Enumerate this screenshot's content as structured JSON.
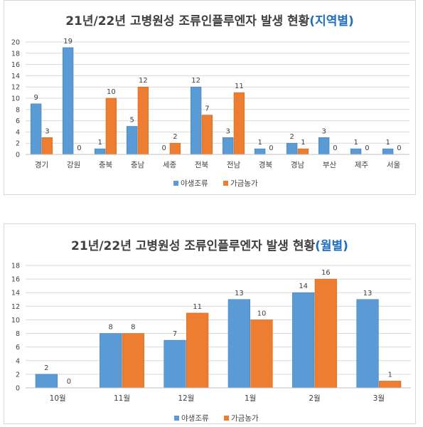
{
  "colors": {
    "series1": "#5b9bd5",
    "series1_dark": "#3d7fc0",
    "series2": "#ed7d31",
    "series2_dark": "#d4661d",
    "grid": "#d9d9d9",
    "text": "#404040",
    "title_accent": "#1f6fbf"
  },
  "chart_data": [
    {
      "type": "bar",
      "title": "21년/22년 고병원성 조류인플루엔자 발생 현황",
      "title_suffix": "(지역별)",
      "categories": [
        "경기",
        "강원",
        "충북",
        "충남",
        "세종",
        "전북",
        "전남",
        "경북",
        "경남",
        "부산",
        "제주",
        "서울"
      ],
      "series": [
        {
          "name": "야생조류",
          "values": [
            9,
            19,
            1,
            5,
            0,
            12,
            3,
            1,
            2,
            3,
            1,
            1
          ]
        },
        {
          "name": "가금농가",
          "values": [
            3,
            0,
            10,
            12,
            2,
            7,
            11,
            0,
            1,
            0,
            0,
            0
          ]
        }
      ],
      "ylim": [
        0,
        20
      ],
      "yticks": [
        0,
        2,
        4,
        6,
        8,
        10,
        12,
        14,
        16,
        18,
        20
      ],
      "grid": true,
      "legend": "bottom"
    },
    {
      "type": "bar",
      "title": "21년/22년 고병원성 조류인플루엔자 발생 현황",
      "title_suffix": "(월별)",
      "categories": [
        "10월",
        "11월",
        "12월",
        "1월",
        "2월",
        "3월"
      ],
      "series": [
        {
          "name": "야생조류",
          "values": [
            2,
            8,
            7,
            13,
            14,
            13
          ]
        },
        {
          "name": "가금농가",
          "values": [
            0,
            8,
            11,
            10,
            16,
            1
          ]
        }
      ],
      "ylim": [
        0,
        18
      ],
      "yticks": [
        0,
        2,
        4,
        6,
        8,
        10,
        12,
        14,
        16,
        18
      ],
      "grid": true,
      "legend": "bottom"
    }
  ]
}
